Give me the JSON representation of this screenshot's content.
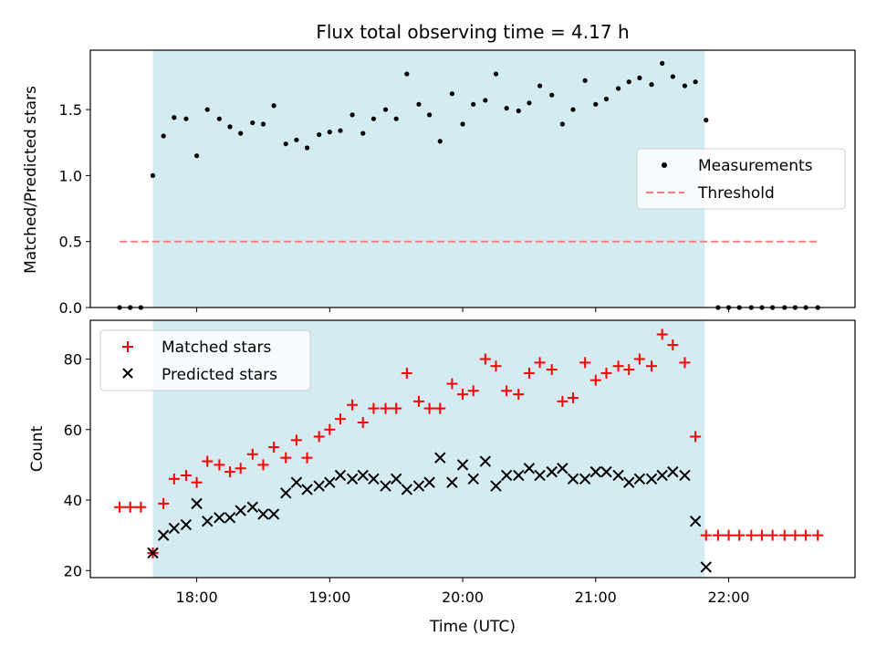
{
  "chart_data": [
    {
      "type": "scatter",
      "title": "Flux total observing time = 4.17 h",
      "xlabel": "",
      "ylabel": "Matched/Predicted stars",
      "xlim": [
        17.2,
        22.95
      ],
      "ylim": [
        0.0,
        1.95
      ],
      "yticks": [
        0.0,
        0.5,
        1.0,
        1.5
      ],
      "ytick_labels": [
        "0.0",
        "0.5",
        "1.0",
        "1.5"
      ],
      "shade": {
        "from": 17.67,
        "to": 21.82,
        "color": "#d4ebf2"
      },
      "legend": {
        "position": "center-right",
        "entries": [
          "Measurements",
          "Threshold"
        ]
      },
      "series": [
        {
          "name": "Measurements",
          "marker": "dot",
          "color": "#000000",
          "x": [
            17.42,
            17.5,
            17.58,
            17.67,
            17.75,
            17.83,
            17.92,
            18.0,
            18.08,
            18.17,
            18.25,
            18.33,
            18.42,
            18.5,
            18.58,
            18.67,
            18.75,
            18.83,
            18.92,
            19.0,
            19.08,
            19.17,
            19.25,
            19.33,
            19.42,
            19.5,
            19.58,
            19.67,
            19.75,
            19.83,
            19.92,
            20.0,
            20.08,
            20.17,
            20.25,
            20.33,
            20.42,
            20.5,
            20.58,
            20.67,
            20.75,
            20.83,
            20.92,
            21.0,
            21.08,
            21.17,
            21.25,
            21.33,
            21.42,
            21.5,
            21.58,
            21.67,
            21.75,
            21.83,
            21.92,
            22.0,
            22.08,
            22.17,
            22.25,
            22.33,
            22.42,
            22.5,
            22.58,
            22.67
          ],
          "y": [
            0,
            0,
            0,
            1.0,
            1.3,
            1.44,
            1.43,
            1.15,
            1.5,
            1.43,
            1.37,
            1.32,
            1.4,
            1.39,
            1.53,
            1.24,
            1.27,
            1.21,
            1.31,
            1.33,
            1.34,
            1.46,
            1.32,
            1.43,
            1.5,
            1.43,
            1.77,
            1.54,
            1.46,
            1.26,
            1.62,
            1.39,
            1.54,
            1.57,
            1.77,
            1.51,
            1.49,
            1.55,
            1.68,
            1.61,
            1.39,
            1.5,
            1.72,
            1.54,
            1.58,
            1.66,
            1.71,
            1.74,
            1.69,
            1.85,
            1.75,
            1.68,
            1.71,
            1.42,
            0,
            0,
            0,
            0,
            0,
            0,
            0,
            0,
            0,
            0
          ]
        },
        {
          "name": "Threshold",
          "marker": "dashed-line",
          "color": "#f08080",
          "x": [
            17.42,
            22.67
          ],
          "y": [
            0.5,
            0.5
          ]
        }
      ]
    },
    {
      "type": "scatter",
      "title": "",
      "xlabel": "Time (UTC)",
      "ylabel": "Count",
      "xlim": [
        17.2,
        22.95
      ],
      "ylim": [
        18,
        91
      ],
      "xticks": [
        18,
        19,
        20,
        21,
        22
      ],
      "xtick_labels": [
        "18:00",
        "19:00",
        "20:00",
        "21:00",
        "22:00"
      ],
      "yticks": [
        20,
        40,
        60,
        80
      ],
      "ytick_labels": [
        "20",
        "40",
        "60",
        "80"
      ],
      "shade": {
        "from": 17.67,
        "to": 21.82,
        "color": "#d4ebf2"
      },
      "legend": {
        "position": "top-left",
        "entries": [
          "Matched stars",
          "Predicted stars"
        ]
      },
      "series": [
        {
          "name": "Matched stars",
          "marker": "plus",
          "color": "#ff0000",
          "x": [
            17.42,
            17.5,
            17.58,
            17.67,
            17.75,
            17.83,
            17.92,
            18.0,
            18.08,
            18.17,
            18.25,
            18.33,
            18.42,
            18.5,
            18.58,
            18.67,
            18.75,
            18.83,
            18.92,
            19.0,
            19.08,
            19.17,
            19.25,
            19.33,
            19.42,
            19.5,
            19.58,
            19.67,
            19.75,
            19.83,
            19.92,
            20.0,
            20.08,
            20.17,
            20.25,
            20.33,
            20.42,
            20.5,
            20.58,
            20.67,
            20.75,
            20.83,
            20.92,
            21.0,
            21.08,
            21.17,
            21.25,
            21.33,
            21.42,
            21.5,
            21.58,
            21.67,
            21.75,
            21.83,
            21.92,
            22.0,
            22.08,
            22.17,
            22.25,
            22.33,
            22.42,
            22.5,
            22.58,
            22.67
          ],
          "y": [
            38,
            38,
            38,
            25,
            39,
            46,
            47,
            45,
            51,
            50,
            48,
            49,
            53,
            50,
            55,
            52,
            57,
            52,
            58,
            60,
            63,
            67,
            62,
            66,
            66,
            66,
            76,
            68,
            66,
            66,
            73,
            70,
            71,
            80,
            78,
            71,
            70,
            76,
            79,
            77,
            68,
            69,
            79,
            74,
            76,
            78,
            77,
            80,
            78,
            87,
            84,
            79,
            58,
            30,
            30,
            30,
            30,
            30,
            30,
            30,
            30,
            30,
            30,
            30
          ]
        },
        {
          "name": "Predicted stars",
          "marker": "x",
          "color": "#000000",
          "x": [
            17.67,
            17.75,
            17.83,
            17.92,
            18.0,
            18.08,
            18.17,
            18.25,
            18.33,
            18.42,
            18.5,
            18.58,
            18.67,
            18.75,
            18.83,
            18.92,
            19.0,
            19.08,
            19.17,
            19.25,
            19.33,
            19.42,
            19.5,
            19.58,
            19.67,
            19.75,
            19.83,
            19.92,
            20.0,
            20.08,
            20.17,
            20.25,
            20.33,
            20.42,
            20.5,
            20.58,
            20.67,
            20.75,
            20.83,
            20.92,
            21.0,
            21.08,
            21.17,
            21.25,
            21.33,
            21.42,
            21.5,
            21.58,
            21.67,
            21.75,
            21.83
          ],
          "y": [
            25,
            30,
            32,
            33,
            39,
            34,
            35,
            35,
            37,
            38,
            36,
            36,
            42,
            45,
            43,
            44,
            45,
            47,
            46,
            47,
            46,
            44,
            46,
            43,
            44,
            45,
            52,
            45,
            50,
            46,
            51,
            44,
            47,
            47,
            49,
            47,
            48,
            49,
            46,
            46,
            48,
            48,
            47,
            45,
            46,
            46,
            47,
            48,
            47,
            34,
            21
          ]
        }
      ]
    }
  ]
}
